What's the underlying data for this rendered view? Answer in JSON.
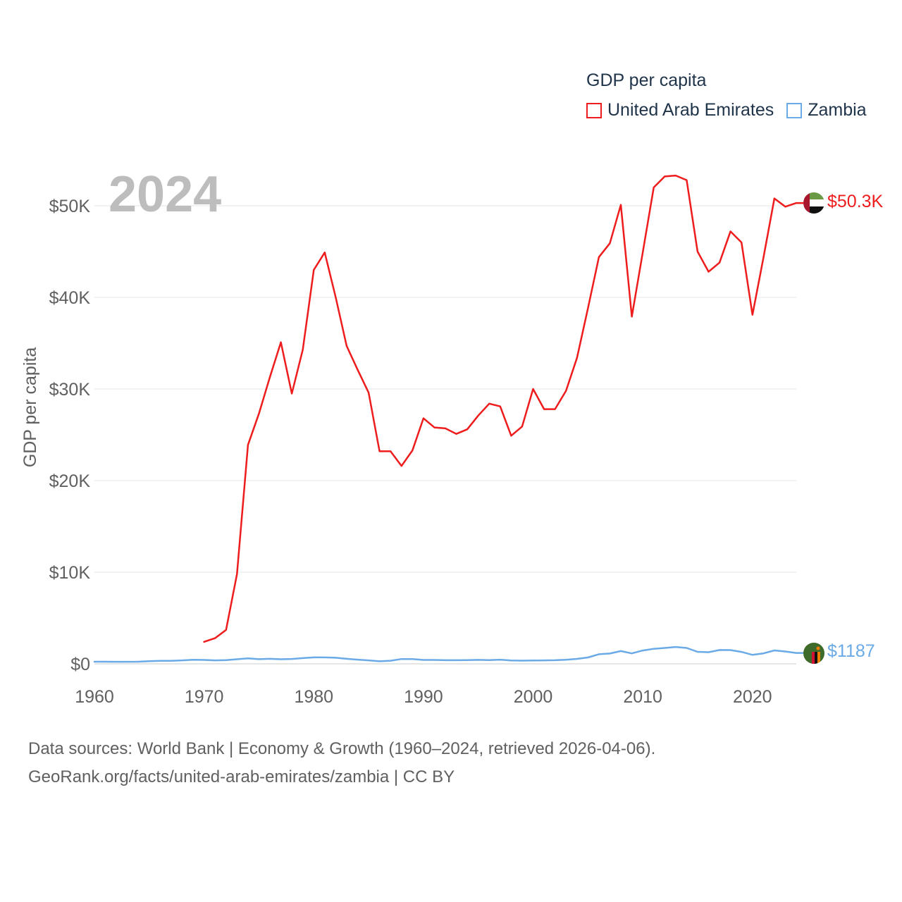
{
  "legend": {
    "title": "GDP per capita",
    "items": [
      {
        "name": "United Arab Emirates",
        "color": "#ee1c1c"
      },
      {
        "name": "Zambia",
        "color": "#6aaae6"
      }
    ]
  },
  "year_label": "2024",
  "end_labels": {
    "uae": "$50.3K",
    "zambia": "$1187"
  },
  "footer": {
    "line1": "Data sources: World Bank | Economy & Growth (1960–2024, retrieved 2026-04-06).",
    "line2": "GeoRank.org/facts/united-arab-emirates/zambia | CC BY"
  },
  "chart_data": {
    "type": "line",
    "title": "GDP per capita",
    "ylabel": "GDP per capita",
    "xlabel": "",
    "xlim": [
      1960,
      2024
    ],
    "ylim": [
      0,
      50000
    ],
    "y_ticks": [
      0,
      10000,
      20000,
      30000,
      40000,
      50000
    ],
    "y_tick_labels": [
      "$0",
      "$10K",
      "$20K",
      "$30K",
      "$40K",
      "$50K"
    ],
    "x_ticks": [
      1960,
      1970,
      1980,
      1990,
      2000,
      2010,
      2020
    ],
    "x_tick_labels": [
      "1960",
      "1970",
      "1980",
      "1990",
      "2000",
      "2010",
      "2020"
    ],
    "grid": true,
    "series": [
      {
        "name": "United Arab Emirates",
        "color": "#ee1c1c",
        "x": [
          1970,
          1971,
          1972,
          1973,
          1974,
          1975,
          1976,
          1977,
          1978,
          1979,
          1980,
          1981,
          1982,
          1983,
          1984,
          1985,
          1986,
          1987,
          1988,
          1989,
          1990,
          1991,
          1992,
          1993,
          1994,
          1995,
          1996,
          1997,
          1998,
          1999,
          2000,
          2001,
          2002,
          2003,
          2004,
          2005,
          2006,
          2007,
          2008,
          2009,
          2010,
          2011,
          2012,
          2013,
          2014,
          2015,
          2016,
          2017,
          2018,
          2019,
          2020,
          2021,
          2022,
          2023,
          2024
        ],
        "values": [
          2400,
          2800,
          3700,
          9800,
          23900,
          27300,
          31300,
          35100,
          29500,
          34300,
          43000,
          44900,
          40000,
          34700,
          32100,
          29600,
          23200,
          23200,
          21600,
          23300,
          26800,
          25800,
          25700,
          25100,
          25600,
          27100,
          28400,
          28100,
          24900,
          25900,
          30000,
          27800,
          27800,
          29800,
          33400,
          38800,
          44400,
          45900,
          50100,
          37900,
          44900,
          52000,
          53200,
          53300,
          52800,
          45000,
          42800,
          43800,
          47200,
          46000,
          38100,
          44300,
          50800,
          49900,
          50300
        ]
      },
      {
        "name": "Zambia",
        "color": "#6aaae6",
        "x": [
          1960,
          1961,
          1962,
          1963,
          1964,
          1965,
          1966,
          1967,
          1968,
          1969,
          1970,
          1971,
          1972,
          1973,
          1974,
          1975,
          1976,
          1977,
          1978,
          1979,
          1980,
          1981,
          1982,
          1983,
          1984,
          1985,
          1986,
          1987,
          1988,
          1989,
          1990,
          1991,
          1992,
          1993,
          1994,
          1995,
          1996,
          1997,
          1998,
          1999,
          2000,
          2001,
          2002,
          2003,
          2004,
          2005,
          2006,
          2007,
          2008,
          2009,
          2010,
          2011,
          2012,
          2013,
          2014,
          2015,
          2016,
          2017,
          2018,
          2019,
          2020,
          2021,
          2022,
          2023,
          2024
        ],
        "values": [
          230,
          230,
          220,
          220,
          230,
          290,
          320,
          330,
          380,
          440,
          420,
          380,
          410,
          500,
          600,
          510,
          550,
          500,
          530,
          620,
          700,
          700,
          660,
          550,
          450,
          380,
          280,
          340,
          520,
          520,
          420,
          420,
          390,
          390,
          410,
          430,
          400,
          450,
          370,
          350,
          360,
          380,
          390,
          440,
          540,
          690,
          1050,
          1120,
          1390,
          1140,
          1450,
          1640,
          1730,
          1840,
          1730,
          1310,
          1270,
          1510,
          1500,
          1300,
          980,
          1140,
          1460,
          1350,
          1187
        ]
      }
    ],
    "annotations": [
      "2024",
      "$50.3K",
      "$1187"
    ]
  }
}
